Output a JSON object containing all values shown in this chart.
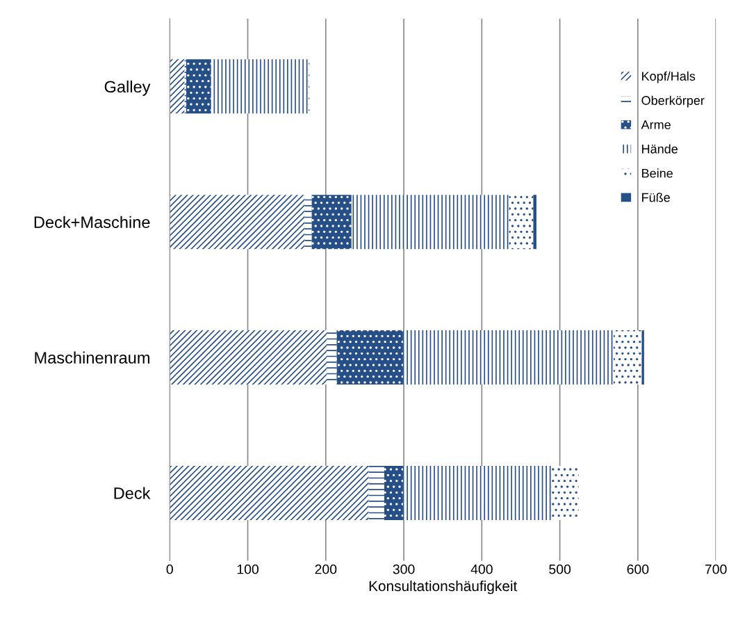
{
  "chart_data": {
    "type": "bar",
    "orientation": "horizontal",
    "stacked": true,
    "categories": [
      "Galley",
      "Deck+Maschine",
      "Maschinenraum",
      "Deck"
    ],
    "series": [
      {
        "name": "Kopf/Hals",
        "color": "#264f87",
        "values": [
          19,
          173,
          201,
          255
        ]
      },
      {
        "name": "Oberkörper",
        "color": "#264f87",
        "values": [
          2,
          9,
          13,
          20
        ]
      },
      {
        "name": "Arme",
        "color": "#264f87",
        "values": [
          32,
          51,
          85,
          24
        ]
      },
      {
        "name": "Hände",
        "color": "#264f87",
        "values": [
          124,
          202,
          270,
          190
        ]
      },
      {
        "name": "Beine",
        "color": "#264f87",
        "values": [
          2,
          31,
          36,
          35
        ]
      },
      {
        "name": "Füße",
        "color": "#264f87",
        "values": [
          0,
          4,
          3,
          0
        ]
      }
    ],
    "xlabel": "Konsultationshäufigkeit",
    "xlim": [
      0,
      700
    ],
    "xticks": [
      0,
      100,
      200,
      300,
      400,
      500,
      600,
      700
    ],
    "grid": "x",
    "legend": "right"
  }
}
